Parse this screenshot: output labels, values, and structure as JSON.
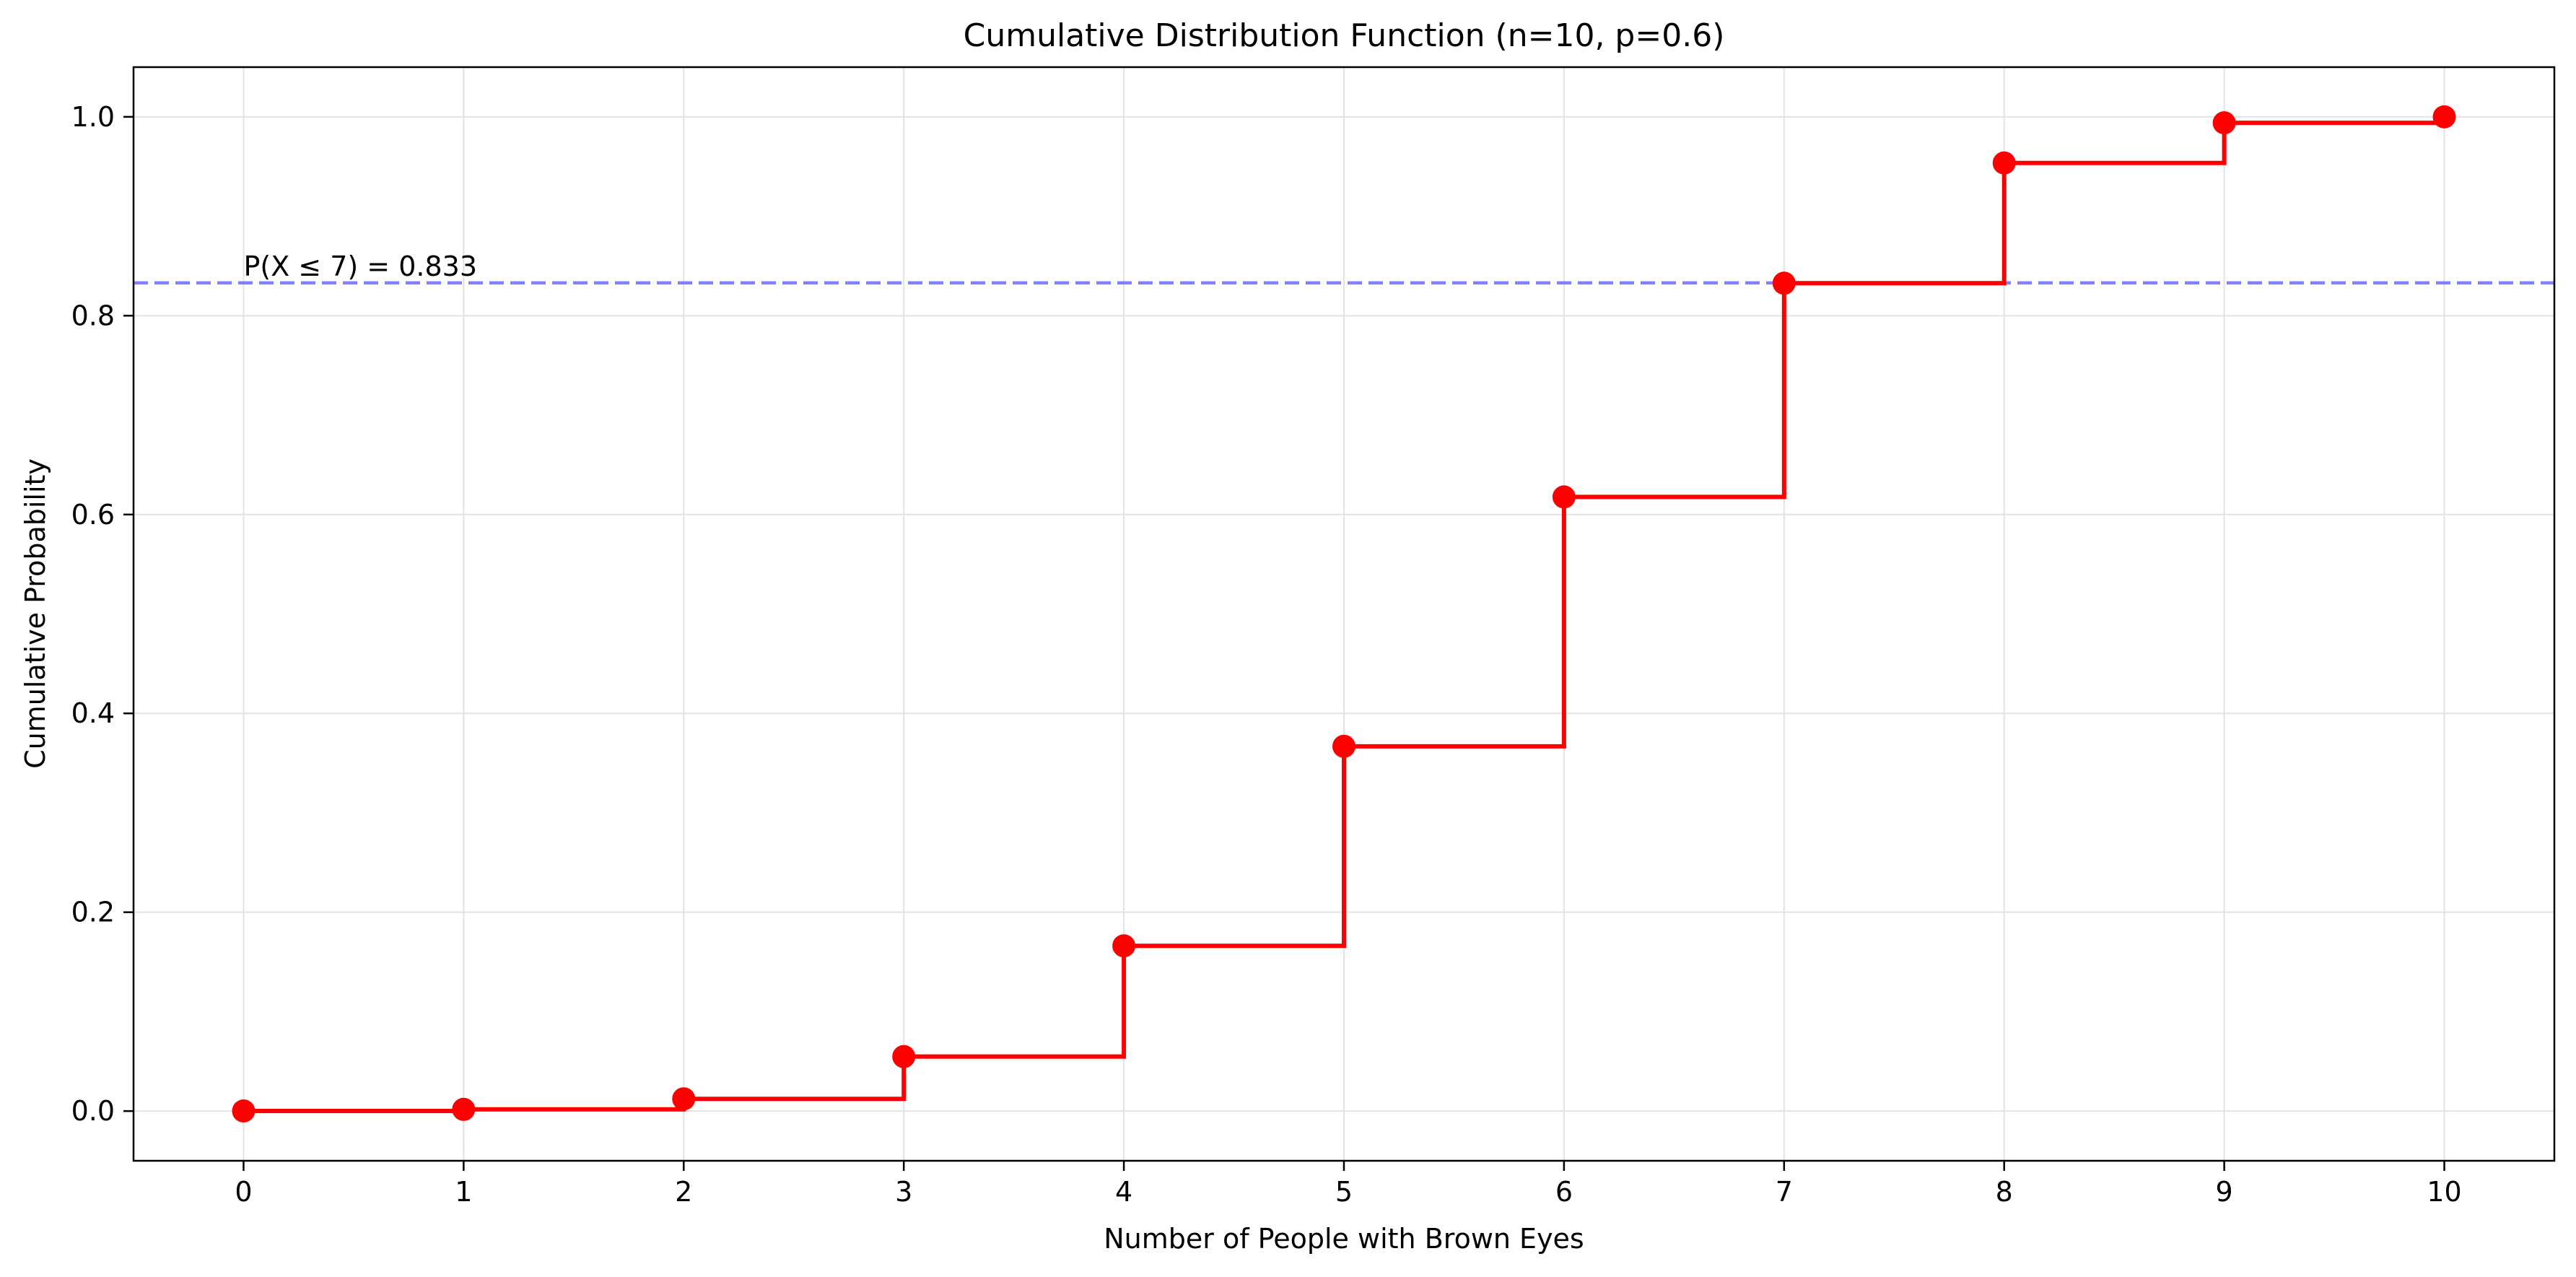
{
  "chart_data": {
    "type": "line",
    "style": "step-post",
    "title": "Cumulative Distribution Function (n=10, p=0.6)",
    "xlabel": "Number of People with Brown Eyes",
    "ylabel": "Cumulative Probability",
    "x": [
      0,
      1,
      2,
      3,
      4,
      5,
      6,
      7,
      8,
      9,
      10
    ],
    "y": [
      0.0001,
      0.0017,
      0.0123,
      0.0548,
      0.1662,
      0.3669,
      0.6177,
      0.8327,
      0.9536,
      0.994,
      1.0
    ],
    "xlim": [
      -0.5,
      10.5
    ],
    "ylim": [
      -0.05,
      1.05
    ],
    "xticks": [
      0,
      1,
      2,
      3,
      4,
      5,
      6,
      7,
      8,
      9,
      10
    ],
    "yticks": [
      0.0,
      0.2,
      0.4,
      0.6,
      0.8,
      1.0
    ],
    "ytick_labels": [
      "0.0",
      "0.2",
      "0.4",
      "0.6",
      "0.8",
      "1.0"
    ],
    "grid": true,
    "series_color": "#ff0000",
    "reference_line": {
      "y": 0.833,
      "color": "#8080ff",
      "style": "dashed",
      "label": "P(X ≤ 7) = 0.833",
      "label_x": 0
    }
  }
}
